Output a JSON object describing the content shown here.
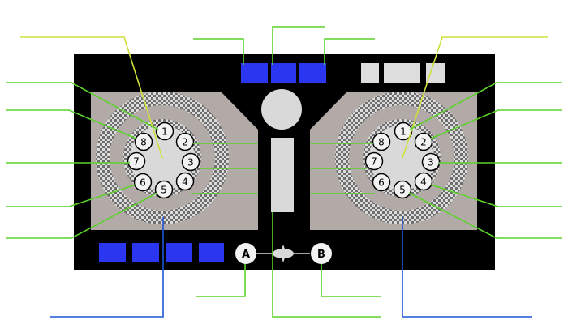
{
  "colors": {
    "body": "#000000",
    "platter": "#b1aaa6",
    "checker_light": "#dcdcdc",
    "checker_dark": "#6e6e6e",
    "hub": "#d9d9d9",
    "key": "#f2f2f2",
    "blue_pad": "#2a36f0",
    "gray_block": "#dddddd",
    "callout_green": "#5bd22a",
    "callout_yellow": "#cfe03a",
    "callout_blue": "#1f56d6"
  },
  "left_deck": {
    "buttons": [
      "1",
      "2",
      "3",
      "4",
      "5",
      "6",
      "7",
      "8"
    ]
  },
  "right_deck": {
    "buttons": [
      "1",
      "2",
      "3",
      "4",
      "5",
      "6",
      "7",
      "8"
    ]
  },
  "center": {
    "button_a": "A",
    "button_b": "B"
  },
  "top_blue_pads": 3,
  "bottom_blue_pads": 4,
  "top_right_gray_blocks": 3
}
